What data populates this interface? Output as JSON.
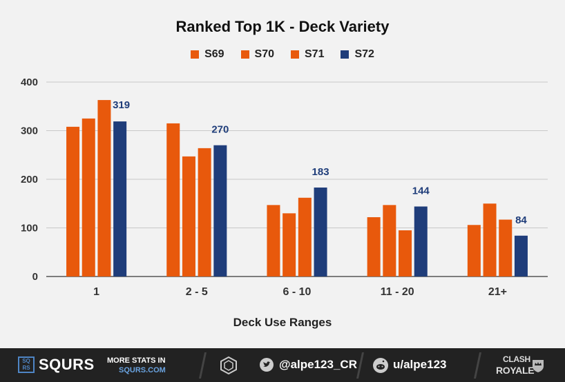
{
  "chart_data": {
    "type": "bar",
    "title": "Ranked Top 1K - Deck Variety",
    "xlabel": "Deck Use Ranges",
    "ylabel": "",
    "ylim": [
      0,
      400
    ],
    "yticks": [
      0,
      100,
      200,
      300,
      400
    ],
    "grid": true,
    "legend_position": "top-center",
    "categories": [
      "1",
      "2 - 5",
      "6 - 10",
      "11 - 20",
      "21+"
    ],
    "series": [
      {
        "name": "S69",
        "color": "#e8590c",
        "values": [
          308,
          315,
          147,
          122,
          106
        ]
      },
      {
        "name": "S70",
        "color": "#e8590c",
        "values": [
          325,
          247,
          130,
          147,
          150
        ]
      },
      {
        "name": "S71",
        "color": "#e8590c",
        "values": [
          363,
          264,
          162,
          95,
          117
        ]
      },
      {
        "name": "S72",
        "color": "#1f3d7a",
        "values": [
          319,
          270,
          183,
          144,
          84
        ]
      }
    ],
    "data_labels_series": "S72",
    "label_color": "#1f3d7a"
  },
  "footer": {
    "logo_letters": [
      "SQ",
      "RS"
    ],
    "brand": "SQURS",
    "more_stats_line1": "MORE STATS IN",
    "more_stats_line2": "SQURS.COM",
    "twitter": "@alpe123_CR",
    "reddit": "u/alpe123",
    "game_logo_line1": "CLASH",
    "game_logo_line2": "ROYALE"
  }
}
